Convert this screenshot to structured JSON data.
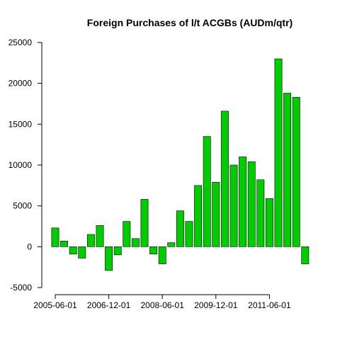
{
  "chart_data": {
    "type": "bar",
    "title": "Foreign Purchases of l/t ACGBs (AUDm/qtr)",
    "xlabel": "",
    "ylabel": "",
    "ylim": [
      -5000,
      25000
    ],
    "y_ticks": [
      -5000,
      0,
      5000,
      10000,
      15000,
      20000,
      25000
    ],
    "bar_color": "#00cc00",
    "grid": false,
    "x_tick_labels": [
      {
        "index": 0,
        "label": "2005-06-01"
      },
      {
        "index": 6,
        "label": "2006-12-01"
      },
      {
        "index": 12,
        "label": "2008-06-01"
      },
      {
        "index": 18,
        "label": "2009-12-01"
      },
      {
        "index": 24,
        "label": "2011-06-01"
      }
    ],
    "categories": [
      "2005-06-01",
      "2005-09-01",
      "2005-12-01",
      "2006-03-01",
      "2006-06-01",
      "2006-09-01",
      "2006-12-01",
      "2007-03-01",
      "2007-06-01",
      "2007-09-01",
      "2007-12-01",
      "2008-03-01",
      "2008-06-01",
      "2008-09-01",
      "2008-12-01",
      "2009-03-01",
      "2009-06-01",
      "2009-09-01",
      "2009-12-01",
      "2010-03-01",
      "2010-06-01",
      "2010-09-01",
      "2010-12-01",
      "2011-03-01",
      "2011-06-01",
      "2011-09-01",
      "2011-12-01",
      "2012-03-01",
      "2012-06-01"
    ],
    "values": [
      2300,
      700,
      -900,
      -1400,
      1500,
      2600,
      -2900,
      -1000,
      3100,
      1000,
      5800,
      -900,
      -2100,
      500,
      4400,
      3100,
      7500,
      13500,
      7900,
      16600,
      10000,
      11000,
      10400,
      8200,
      5900,
      23000,
      18800,
      18300,
      -2100
    ]
  }
}
